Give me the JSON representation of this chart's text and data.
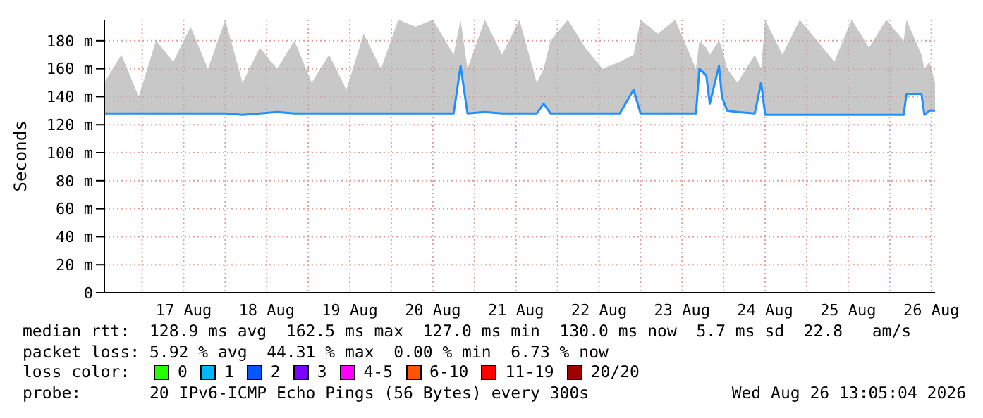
{
  "chart_data": {
    "type": "line",
    "ylabel": "Seconds",
    "legend_title": "loss color:",
    "legend": "bottom",
    "grid": true,
    "marker": "none",
    "xlim": [
      "2026-08-16T13:05",
      "2026-08-26T13:05"
    ],
    "xticks": [
      {
        "value": "2026-08-17T00:00",
        "label": null
      },
      {
        "value": "2026-08-17T12:00",
        "label": "17 Aug"
      },
      {
        "value": "2026-08-18T00:00",
        "label": null
      },
      {
        "value": "2026-08-18T12:00",
        "label": "18 Aug"
      },
      {
        "value": "2026-08-19T00:00",
        "label": null
      },
      {
        "value": "2026-08-19T12:00",
        "label": "19 Aug"
      },
      {
        "value": "2026-08-20T00:00",
        "label": null
      },
      {
        "value": "2026-08-20T12:00",
        "label": "20 Aug"
      },
      {
        "value": "2026-08-21T00:00",
        "label": null
      },
      {
        "value": "2026-08-21T12:00",
        "label": "21 Aug"
      },
      {
        "value": "2026-08-22T00:00",
        "label": null
      },
      {
        "value": "2026-08-22T12:00",
        "label": "22 Aug"
      },
      {
        "value": "2026-08-23T00:00",
        "label": null
      },
      {
        "value": "2026-08-23T12:00",
        "label": "23 Aug"
      },
      {
        "value": "2026-08-24T00:00",
        "label": null
      },
      {
        "value": "2026-08-24T12:00",
        "label": "24 Aug"
      },
      {
        "value": "2026-08-25T00:00",
        "label": null
      },
      {
        "value": "2026-08-25T12:00",
        "label": "25 Aug"
      },
      {
        "value": "2026-08-26T00:00",
        "label": null
      },
      {
        "value": "2026-08-26T12:00",
        "label": "26 Aug"
      }
    ],
    "ylim": [
      0,
      195
    ],
    "yticks": [
      0,
      {
        "value": 20,
        "label": "20 m"
      },
      {
        "value": 40,
        "label": "40 m"
      },
      {
        "value": 60,
        "label": "60 m"
      },
      {
        "value": 80,
        "label": "80 m"
      },
      {
        "value": 100,
        "label": "100 m"
      },
      {
        "value": 120,
        "label": "120 m"
      },
      {
        "value": 140,
        "label": "140 m"
      },
      {
        "value": 160,
        "label": "160 m"
      },
      {
        "value": 180,
        "label": "180 m"
      }
    ],
    "x": [
      "2026-08-16T13:05",
      "2026-08-16T18:00",
      "2026-08-16T23:00",
      "2026-08-17T04:00",
      "2026-08-17T09:00",
      "2026-08-17T14:00",
      "2026-08-17T19:00",
      "2026-08-18T00:00",
      "2026-08-18T05:00",
      "2026-08-18T10:00",
      "2026-08-18T15:00",
      "2026-08-18T20:00",
      "2026-08-19T01:00",
      "2026-08-19T06:00",
      "2026-08-19T11:00",
      "2026-08-19T16:00",
      "2026-08-19T21:00",
      "2026-08-20T02:00",
      "2026-08-20T07:00",
      "2026-08-20T12:00",
      "2026-08-20T18:00",
      "2026-08-20T20:00",
      "2026-08-20T22:00",
      "2026-08-21T03:00",
      "2026-08-21T08:00",
      "2026-08-21T13:00",
      "2026-08-21T18:00",
      "2026-08-21T20:00",
      "2026-08-21T22:00",
      "2026-08-22T03:00",
      "2026-08-22T08:00",
      "2026-08-22T13:00",
      "2026-08-22T18:00",
      "2026-08-22T22:00",
      "2026-08-23T00:00",
      "2026-08-23T05:00",
      "2026-08-23T10:00",
      "2026-08-23T16:00",
      "2026-08-23T17:00",
      "2026-08-23T19:00",
      "2026-08-23T20:00",
      "2026-08-23T22:40",
      "2026-08-23T23:30",
      "2026-08-24T01:00",
      "2026-08-24T04:00",
      "2026-08-24T09:00",
      "2026-08-24T10:50",
      "2026-08-24T12:00",
      "2026-08-24T17:00",
      "2026-08-24T22:00",
      "2026-08-25T03:00",
      "2026-08-25T08:00",
      "2026-08-25T13:00",
      "2026-08-25T18:00",
      "2026-08-25T23:00",
      "2026-08-26T04:00",
      "2026-08-26T04:50",
      "2026-08-26T09:10",
      "2026-08-26T10:00",
      "2026-08-26T11:30",
      "2026-08-26T13:05"
    ],
    "series": [
      {
        "color": "#1e90ff",
        "values": [
          128,
          128,
          128,
          128,
          128,
          128,
          128,
          128,
          127,
          128,
          129,
          128,
          128,
          128,
          128,
          128,
          128,
          128,
          128,
          128,
          128,
          162,
          128,
          129,
          128,
          128,
          128,
          135,
          128,
          128,
          128,
          128,
          128,
          145,
          128,
          128,
          128,
          128,
          160,
          155,
          135,
          162,
          140,
          130,
          129,
          128,
          150,
          127,
          127,
          127,
          127,
          127,
          127,
          127,
          127,
          127,
          142,
          142,
          127,
          130,
          130
        ],
        "lower": [
          128,
          128,
          128,
          128,
          128,
          128,
          128,
          128,
          127,
          128,
          129,
          128,
          128,
          128,
          128,
          128,
          128,
          128,
          128,
          128,
          128,
          162,
          128,
          129,
          128,
          128,
          128,
          135,
          128,
          128,
          128,
          128,
          128,
          145,
          128,
          128,
          128,
          128,
          160,
          155,
          135,
          162,
          140,
          130,
          129,
          128,
          150,
          127,
          127,
          127,
          127,
          127,
          127,
          127,
          127,
          127,
          142,
          142,
          127,
          130,
          130
        ],
        "upper": [
          150,
          170,
          140,
          180,
          165,
          190,
          160,
          195,
          150,
          175,
          160,
          180,
          150,
          170,
          145,
          185,
          160,
          195,
          190,
          195,
          170,
          195,
          160,
          195,
          170,
          195,
          150,
          160,
          180,
          195,
          175,
          160,
          165,
          170,
          195,
          185,
          195,
          160,
          180,
          175,
          170,
          180,
          175,
          160,
          150,
          170,
          160,
          195,
          170,
          195,
          180,
          165,
          195,
          175,
          195,
          180,
          195,
          170,
          160,
          165,
          150
        ]
      },
      {
        "name": "0",
        "color": "#26ff00",
        "values": [
          null,
          null,
          null,
          null,
          null,
          null,
          null,
          null,
          null,
          null,
          null,
          null,
          null,
          null,
          null,
          null,
          null,
          null,
          null,
          null,
          null,
          null,
          null,
          null,
          null,
          null,
          null,
          null,
          null,
          null,
          null,
          null,
          null,
          null,
          null,
          null,
          null,
          null,
          null,
          null,
          null,
          null,
          null,
          null,
          null,
          null,
          null,
          null,
          null,
          null,
          null,
          null,
          null,
          null,
          null,
          null,
          null,
          null,
          null,
          null,
          null
        ]
      },
      {
        "name": "1",
        "color": "#00b8ff",
        "values": [
          null,
          null,
          null,
          null,
          null,
          null,
          null,
          null,
          null,
          null,
          null,
          null,
          null,
          null,
          null,
          null,
          null,
          null,
          null,
          null,
          null,
          null,
          null,
          null,
          null,
          null,
          null,
          null,
          null,
          null,
          null,
          null,
          null,
          null,
          null,
          null,
          null,
          null,
          null,
          null,
          null,
          null,
          null,
          null,
          null,
          null,
          null,
          null,
          null,
          null,
          null,
          null,
          null,
          null,
          null,
          null,
          null,
          null,
          null,
          null,
          null
        ]
      },
      {
        "name": "2",
        "color": "#0059ff",
        "values": [
          null,
          null,
          null,
          null,
          null,
          null,
          null,
          null,
          null,
          null,
          null,
          null,
          null,
          null,
          null,
          null,
          null,
          null,
          null,
          null,
          null,
          null,
          null,
          null,
          null,
          null,
          null,
          null,
          null,
          null,
          null,
          null,
          null,
          null,
          null,
          null,
          null,
          null,
          null,
          null,
          null,
          null,
          null,
          null,
          null,
          null,
          null,
          null,
          null,
          null,
          null,
          null,
          null,
          null,
          null,
          null,
          null,
          null,
          null,
          null,
          null
        ]
      },
      {
        "name": "3",
        "color": "#7e00ff",
        "values": [
          null,
          null,
          null,
          null,
          null,
          null,
          null,
          null,
          null,
          null,
          null,
          null,
          null,
          null,
          null,
          null,
          null,
          null,
          null,
          null,
          null,
          null,
          null,
          null,
          null,
          null,
          null,
          null,
          null,
          null,
          null,
          null,
          null,
          null,
          null,
          null,
          null,
          null,
          null,
          null,
          null,
          null,
          null,
          null,
          null,
          null,
          null,
          null,
          null,
          null,
          null,
          null,
          null,
          null,
          null,
          null,
          null,
          null,
          null,
          null,
          null
        ]
      },
      {
        "name": "4-5",
        "color": "#ff00ff",
        "values": [
          null,
          null,
          null,
          null,
          null,
          null,
          null,
          null,
          null,
          null,
          null,
          null,
          null,
          null,
          null,
          null,
          null,
          null,
          null,
          null,
          null,
          null,
          null,
          null,
          null,
          null,
          null,
          null,
          null,
          null,
          null,
          null,
          null,
          null,
          null,
          null,
          null,
          null,
          null,
          null,
          null,
          null,
          null,
          null,
          null,
          null,
          null,
          null,
          null,
          null,
          null,
          null,
          null,
          null,
          null,
          null,
          null,
          null,
          null,
          null,
          null
        ]
      },
      {
        "name": "6-10",
        "color": "#ff5500",
        "values": [
          null,
          null,
          null,
          null,
          null,
          null,
          null,
          null,
          null,
          null,
          null,
          null,
          null,
          null,
          null,
          null,
          null,
          null,
          null,
          null,
          null,
          null,
          null,
          null,
          null,
          null,
          null,
          null,
          null,
          null,
          null,
          null,
          null,
          null,
          null,
          null,
          null,
          null,
          null,
          null,
          null,
          null,
          null,
          null,
          null,
          null,
          null,
          null,
          null,
          null,
          null,
          null,
          null,
          null,
          null,
          null,
          null,
          null,
          null,
          null,
          null
        ]
      },
      {
        "name": "11-19",
        "color": "#ff0000",
        "values": [
          null,
          null,
          null,
          null,
          null,
          null,
          null,
          null,
          null,
          null,
          null,
          null,
          null,
          null,
          null,
          null,
          null,
          null,
          null,
          null,
          null,
          null,
          null,
          null,
          null,
          null,
          null,
          null,
          null,
          null,
          null,
          null,
          null,
          null,
          null,
          null,
          null,
          null,
          null,
          null,
          null,
          null,
          null,
          null,
          null,
          null,
          null,
          null,
          null,
          null,
          null,
          null,
          null,
          null,
          null,
          null,
          null,
          null,
          null,
          null,
          null
        ]
      },
      {
        "name": "20/20",
        "color": "#a10000",
        "values": [
          null,
          null,
          null,
          null,
          null,
          null,
          null,
          null,
          null,
          null,
          null,
          null,
          null,
          null,
          null,
          null,
          null,
          null,
          null,
          null,
          null,
          null,
          null,
          null,
          null,
          null,
          null,
          null,
          null,
          null,
          null,
          null,
          null,
          null,
          null,
          null,
          null,
          null,
          null,
          null,
          null,
          null,
          null,
          null,
          null,
          null,
          null,
          null,
          null,
          null,
          null,
          null,
          null,
          null,
          null,
          null,
          null,
          null,
          null,
          null,
          null
        ]
      }
    ],
    "annotations": [
      "median rtt:  128.9 ms avg  162.5 ms max  127.0 ms min  130.0 ms now  5.7 ms sd  22.8   am/s",
      "packet loss: 5.92 % avg  44.31 % max  0.00 % min  6.73 % now",
      "probe:       20 IPv6-ICMP Echo Pings (56 Bytes) every 300s",
      "Wed Aug 26 13:05:04 2026"
    ]
  }
}
